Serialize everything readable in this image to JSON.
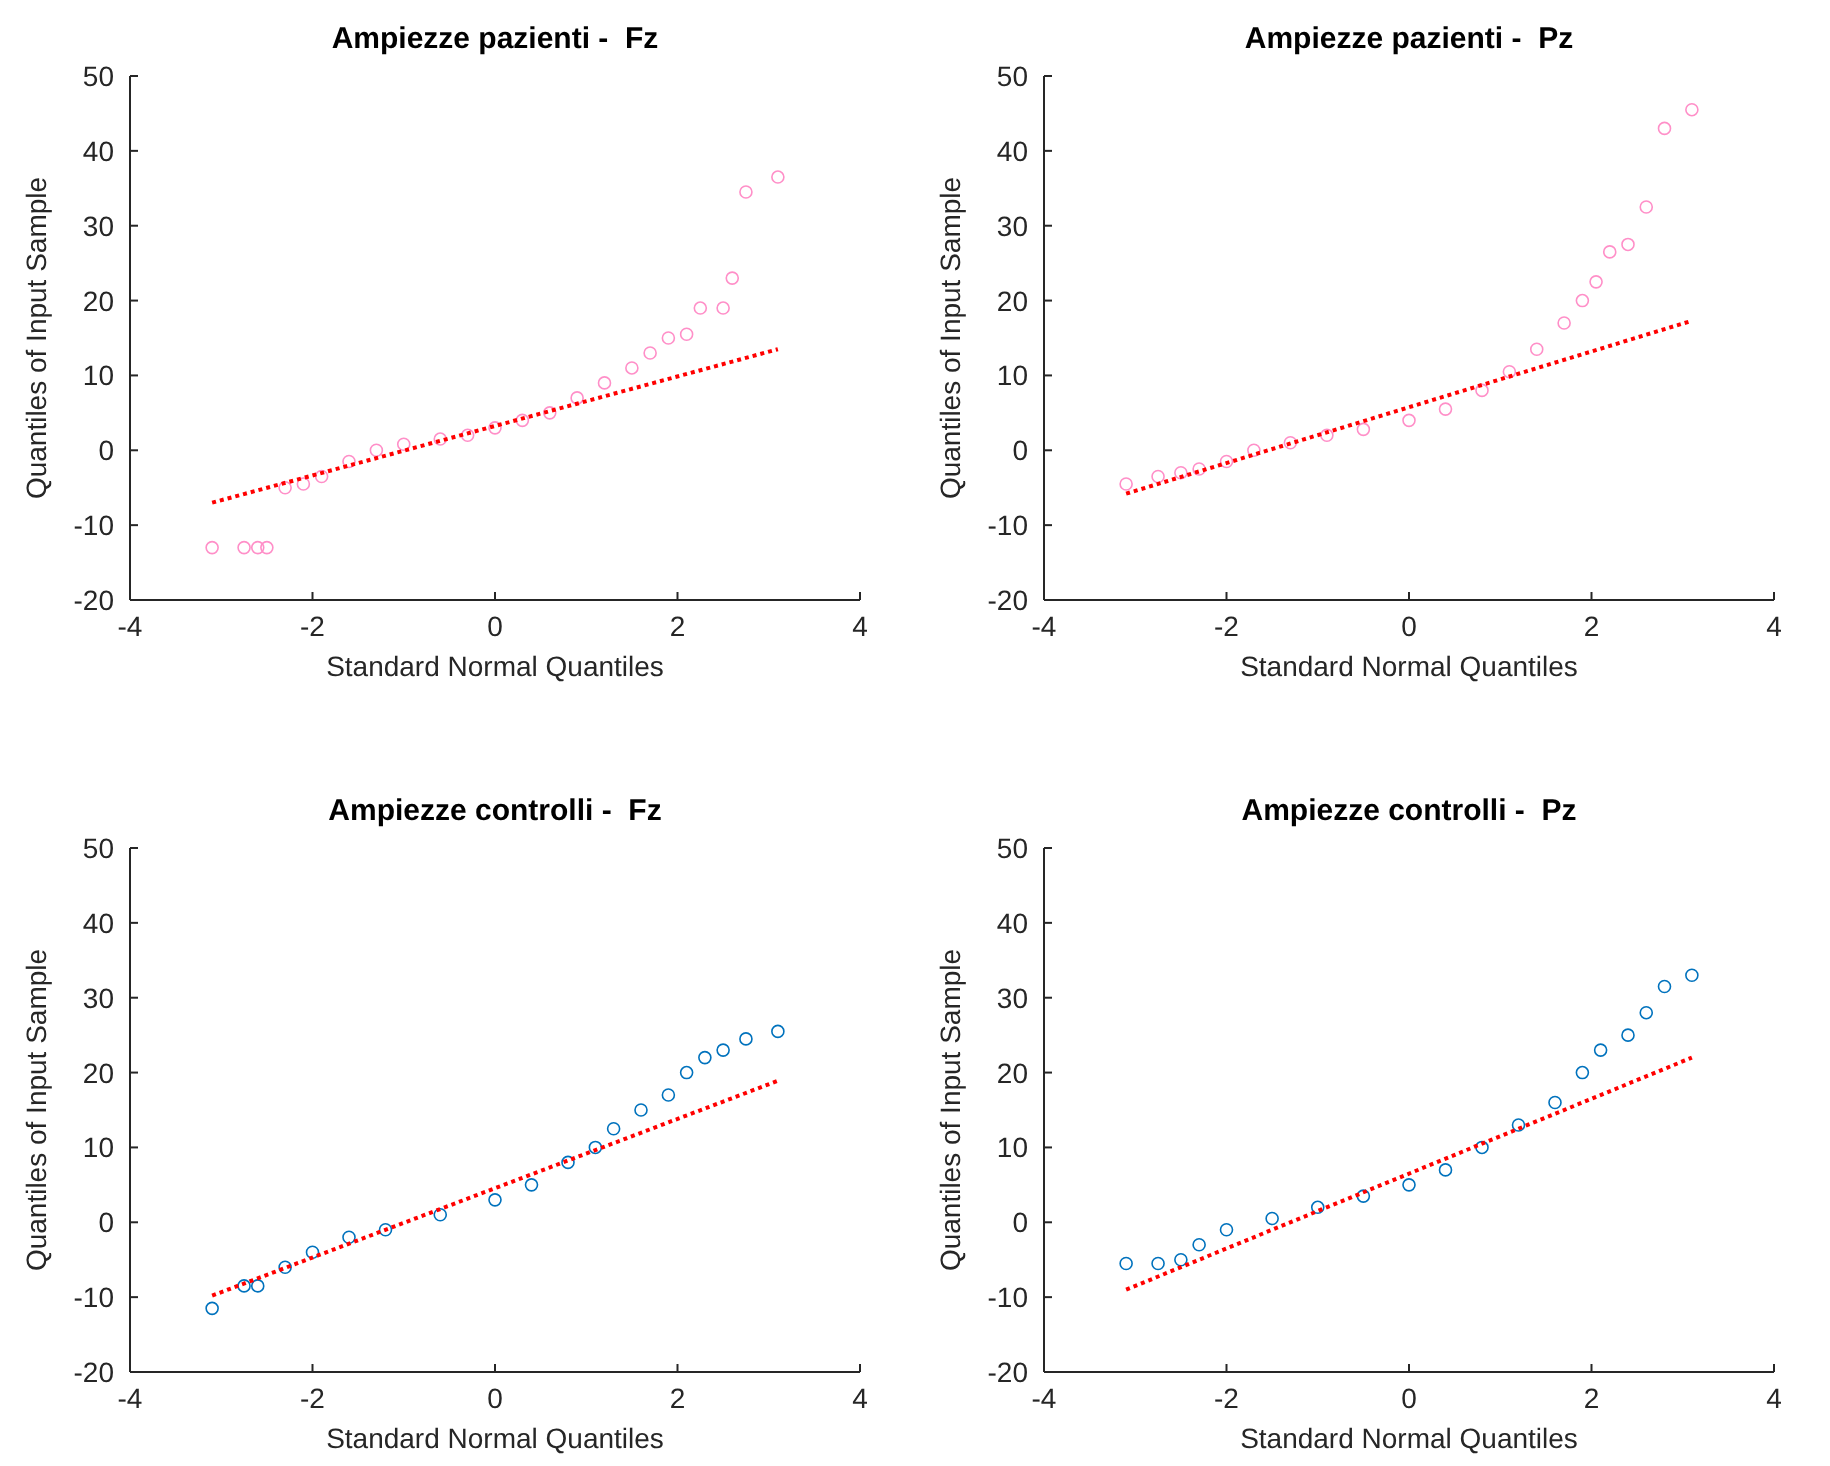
{
  "chart_data": [
    {
      "type": "scatter",
      "title": "Ampiezze pazienti -  Fz",
      "xlabel": "Standard Normal Quantiles",
      "ylabel": "Quantiles of Input Sample",
      "xlim": [
        -4,
        4
      ],
      "ylim": [
        -20,
        50
      ],
      "xticks": [
        -4,
        -2,
        0,
        2,
        4
      ],
      "yticks": [
        -20,
        -10,
        0,
        10,
        20,
        30,
        40,
        50
      ],
      "series": [
        {
          "marker": "circle",
          "color": "#ff8fc8",
          "x": [
            -3.1,
            -2.75,
            -2.6,
            -2.5,
            -2.3,
            -2.1,
            -1.9,
            -1.6,
            -1.3,
            -1.0,
            -0.6,
            -0.3,
            0,
            0.3,
            0.6,
            0.9,
            1.2,
            1.5,
            1.7,
            1.9,
            2.1,
            2.25,
            2.5,
            2.6,
            2.75,
            3.1
          ],
          "values": [
            -13,
            -13,
            -13,
            -13,
            -5,
            -4.5,
            -3.5,
            -1.5,
            0,
            0.8,
            1.5,
            2,
            3,
            4,
            5,
            7,
            9,
            11,
            13,
            15,
            15.5,
            19,
            19,
            23,
            34.5,
            36.5
          ]
        },
        {
          "type": "line",
          "marker": "none",
          "color": "#ff0000",
          "line_style": "dotted",
          "x": [
            -3.1,
            3.1
          ],
          "values": [
            -7,
            13.5
          ]
        }
      ]
    },
    {
      "type": "scatter",
      "title": "Ampiezze pazienti -  Pz",
      "xlabel": "Standard Normal Quantiles",
      "ylabel": "Quantiles of Input Sample",
      "xlim": [
        -4,
        4
      ],
      "ylim": [
        -20,
        50
      ],
      "xticks": [
        -4,
        -2,
        0,
        2,
        4
      ],
      "yticks": [
        -20,
        -10,
        0,
        10,
        20,
        30,
        40,
        50
      ],
      "series": [
        {
          "marker": "circle",
          "color": "#ff8fc8",
          "x": [
            -3.1,
            -2.75,
            -2.5,
            -2.3,
            -2.0,
            -1.7,
            -1.3,
            -0.9,
            -0.5,
            0,
            0.4,
            0.8,
            1.1,
            1.4,
            1.7,
            1.9,
            2.05,
            2.2,
            2.4,
            2.6,
            2.8,
            3.1
          ],
          "values": [
            -4.5,
            -3.5,
            -3,
            -2.5,
            -1.5,
            0,
            1,
            2,
            2.8,
            4,
            5.5,
            8,
            10.5,
            13.5,
            17,
            20,
            22.5,
            26.5,
            27.5,
            32.5,
            43,
            45.5
          ]
        },
        {
          "type": "line",
          "marker": "none",
          "color": "#ff0000",
          "line_style": "dotted",
          "x": [
            -3.1,
            3.1
          ],
          "values": [
            -5.8,
            17.3
          ]
        }
      ]
    },
    {
      "type": "scatter",
      "title": "Ampiezze controlli -  Fz",
      "xlabel": "Standard Normal Quantiles",
      "ylabel": "Quantiles of Input Sample",
      "xlim": [
        -4,
        4
      ],
      "ylim": [
        -20,
        50
      ],
      "xticks": [
        -4,
        -2,
        0,
        2,
        4
      ],
      "yticks": [
        -20,
        -10,
        0,
        10,
        20,
        30,
        40,
        50
      ],
      "series": [
        {
          "marker": "circle",
          "color": "#0072bd",
          "x": [
            -3.1,
            -2.75,
            -2.6,
            -2.3,
            -2.0,
            -1.6,
            -1.2,
            -0.6,
            0,
            0.4,
            0.8,
            1.1,
            1.3,
            1.6,
            1.9,
            2.1,
            2.3,
            2.5,
            2.75,
            3.1
          ],
          "values": [
            -11.5,
            -8.5,
            -8.5,
            -6,
            -4,
            -2,
            -1,
            1,
            3,
            5,
            8,
            10,
            12.5,
            15,
            17,
            20,
            22,
            23,
            24.5,
            25.5
          ]
        },
        {
          "type": "line",
          "marker": "none",
          "color": "#ff0000",
          "line_style": "dotted",
          "x": [
            -3.1,
            3.1
          ],
          "values": [
            -9.8,
            18.9
          ]
        }
      ]
    },
    {
      "type": "scatter",
      "title": "Ampiezze controlli -  Pz",
      "xlabel": "Standard Normal Quantiles",
      "ylabel": "Quantiles of Input Sample",
      "xlim": [
        -4,
        4
      ],
      "ylim": [
        -20,
        50
      ],
      "xticks": [
        -4,
        -2,
        0,
        2,
        4
      ],
      "yticks": [
        -20,
        -10,
        0,
        10,
        20,
        30,
        40,
        50
      ],
      "series": [
        {
          "marker": "circle",
          "color": "#0072bd",
          "x": [
            -3.1,
            -2.75,
            -2.5,
            -2.3,
            -2.0,
            -1.5,
            -1.0,
            -0.5,
            0,
            0.4,
            0.8,
            1.2,
            1.6,
            1.9,
            2.1,
            2.4,
            2.6,
            2.8,
            3.1
          ],
          "values": [
            -5.5,
            -5.5,
            -5,
            -3,
            -1,
            0.5,
            2,
            3.5,
            5,
            7,
            10,
            13,
            16,
            20,
            23,
            25,
            28,
            31.5,
            33
          ]
        },
        {
          "type": "line",
          "marker": "none",
          "color": "#ff0000",
          "line_style": "dotted",
          "x": [
            -3.1,
            3.1
          ],
          "values": [
            -9,
            22
          ]
        }
      ]
    }
  ]
}
